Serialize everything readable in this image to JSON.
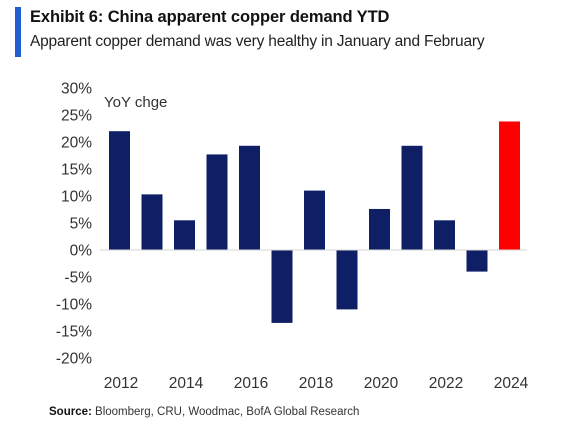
{
  "header": {
    "title": "Exhibit 6: China apparent copper demand YTD",
    "subtitle": "Apparent copper demand was very healthy in January and February"
  },
  "source": {
    "label": "Source:",
    "text": "Bloomberg, CRU, Woodmac, BofA Global Research"
  },
  "colors": {
    "accent": "#1f5fd1",
    "bar": "#0f1f66",
    "highlight_bar": "#ff0000"
  },
  "chart_data": {
    "type": "bar",
    "title": "Exhibit 6: China apparent copper demand YTD",
    "ylabel": "YoY chge",
    "xlabel": "",
    "ylim": [
      -20,
      30
    ],
    "yticks": [
      30,
      25,
      20,
      15,
      10,
      5,
      0,
      -5,
      -10,
      -15,
      -20
    ],
    "ytick_labels": [
      "30%",
      "25%",
      "20%",
      "15%",
      "10%",
      "5%",
      "0%",
      "-5%",
      "-10%",
      "-15%",
      "-20%"
    ],
    "categories": [
      "2012",
      "2013",
      "2014",
      "2015",
      "2016",
      "2017",
      "2018",
      "2019",
      "2020",
      "2021",
      "2022",
      "2023",
      "2024"
    ],
    "xtick_labels": [
      "2012",
      "2014",
      "2016",
      "2018",
      "2020",
      "2022",
      "2024"
    ],
    "values": [
      22,
      10.3,
      5.5,
      17.7,
      19.3,
      -13.5,
      11,
      -11,
      7.6,
      19.3,
      5.5,
      -4,
      23.8
    ],
    "highlight_category": "2024",
    "grid": false,
    "legend": "none"
  }
}
